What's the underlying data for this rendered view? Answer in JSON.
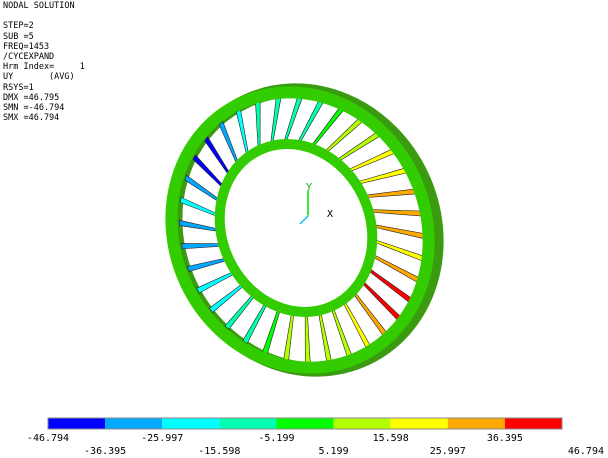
{
  "header": {
    "lines": [
      "NODAL SOLUTION",
      "",
      "STEP=2",
      "SUB =5",
      "FREQ=1453",
      "/CYCEXPAND",
      "Hrm Index=     1",
      "UY       (AVG)",
      "RSYS=1",
      "DMX =46.795",
      "SMN =-46.794",
      "SMX =46.794"
    ]
  },
  "axes": {
    "x": "X",
    "y": "Y"
  },
  "legend": {
    "colors": [
      "#0000ff",
      "#00a8ff",
      "#00ffff",
      "#00ffb0",
      "#00ff00",
      "#b4ff00",
      "#ffff00",
      "#ffa800",
      "#ff0000"
    ],
    "labels": [
      -46.794,
      -36.395,
      -25.997,
      -15.598,
      -5.199,
      5.199,
      15.598,
      25.997,
      36.395,
      46.794
    ]
  }
}
